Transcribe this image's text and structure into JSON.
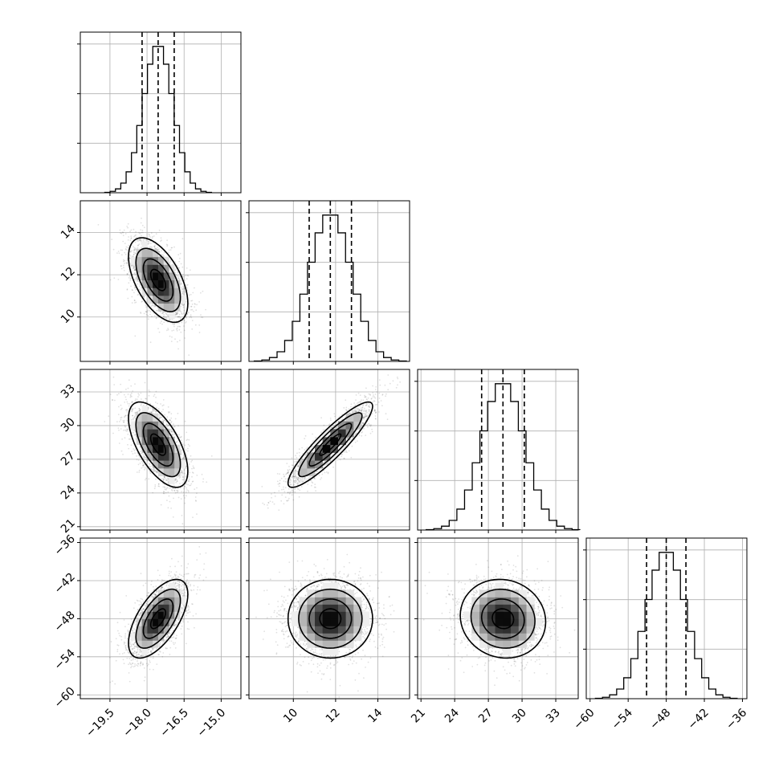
{
  "chart_data": {
    "type": "corner",
    "parameters": [
      {
        "label": "",
        "mean": -17.55,
        "sd": 0.6,
        "range": [
          -20.7,
          -14.2
        ],
        "ticks": [
          -19.5,
          -18.0,
          -16.5,
          -15.0
        ],
        "tick_labels": [
          "−19.5",
          "−18.0",
          "−16.5",
          "−15.0"
        ],
        "quantiles": [
          -18.2,
          -17.55,
          -16.9
        ]
      },
      {
        "label": "",
        "mean": 11.75,
        "sd": 1.0,
        "range": [
          7.9,
          15.5
        ],
        "ticks": [
          10,
          12,
          14
        ],
        "tick_labels": [
          "10",
          "12",
          "14"
        ],
        "quantiles": [
          10.75,
          11.75,
          12.75
        ]
      },
      {
        "label": "",
        "mean": 28.3,
        "sd": 1.9,
        "range": [
          20.7,
          35.0
        ],
        "ticks": [
          21,
          24,
          27,
          30,
          33
        ],
        "tick_labels": [
          "21",
          "24",
          "27",
          "30",
          "33"
        ],
        "quantiles": [
          26.4,
          28.3,
          30.2
        ]
      },
      {
        "label": "",
        "mean": -48.0,
        "sd": 3.1,
        "range": [
          -60.6,
          -35.3
        ],
        "ticks": [
          -60,
          -54,
          -48,
          -42,
          -36
        ],
        "tick_labels": [
          "−60",
          "−54",
          "−48",
          "−42",
          "−36"
        ],
        "quantiles": [
          -51.1,
          -48.0,
          -44.9
        ]
      }
    ],
    "correlations": {
      "1-0": -0.55,
      "2-0": -0.62,
      "2-1": 0.9,
      "3-0": 0.62,
      "3-1": 0.0,
      "3-2": -0.08
    },
    "histogram_bins": 20,
    "n_samples": 5000,
    "contour_levels": [
      0.118,
      0.393,
      0.675,
      0.865
    ],
    "quantile_line_style": "dashed",
    "grid": true
  }
}
